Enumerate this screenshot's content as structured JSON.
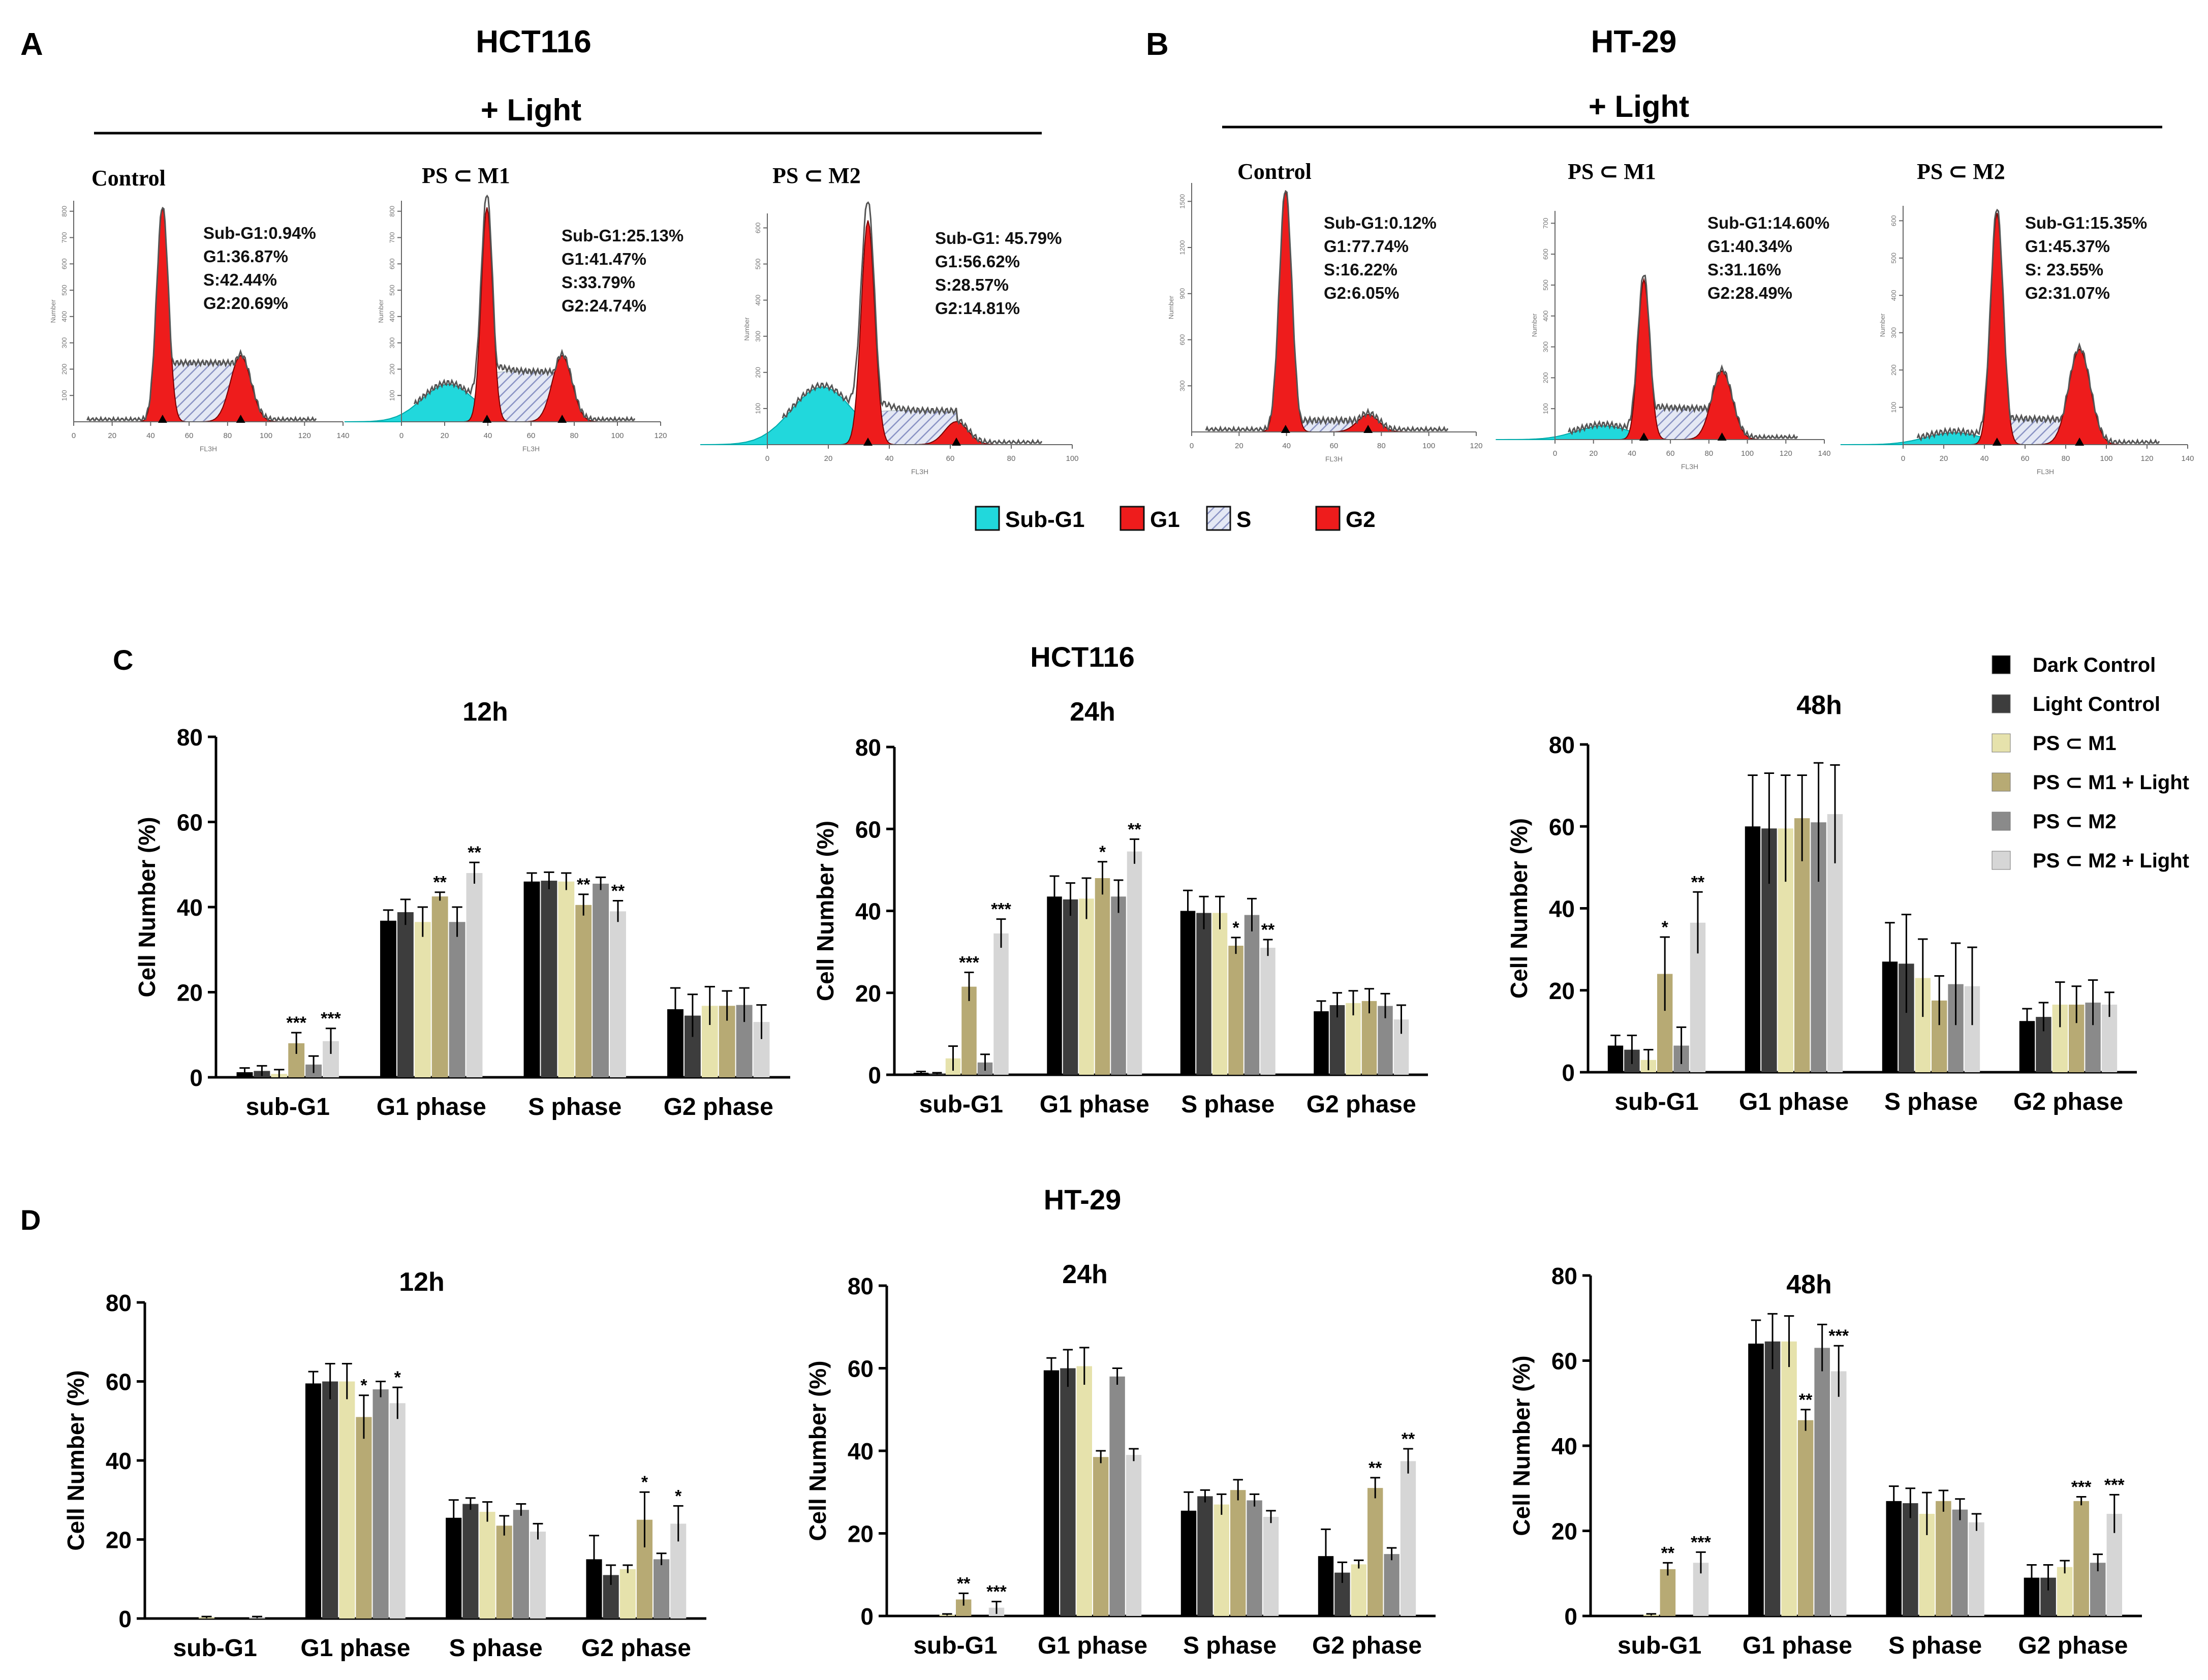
{
  "panels": {
    "a": {
      "letter": "A",
      "cell_line": "HCT116",
      "condition": "+ Light"
    },
    "b": {
      "letter": "B",
      "cell_line": "HT-29",
      "condition": "+ Light"
    },
    "c": {
      "letter": "C",
      "cell_line": "HCT116"
    },
    "d": {
      "letter": "D",
      "cell_line": "HT-29"
    }
  },
  "histograms": [
    {
      "panel": "A",
      "title": "Control",
      "stats": [
        "Sub-G1:0.94%",
        "G1:36.87%",
        "S:42.44%",
        "G2:20.69%"
      ],
      "subg1_amp": 0.0,
      "g1_amp": 0.97,
      "g2_amp": 0.3,
      "s_level": 0.26,
      "ticks": [
        "0",
        "20",
        "40",
        "60",
        "80",
        "100",
        "120",
        "140"
      ],
      "xlabel": "FL3H",
      "yticks": [
        "100",
        "200",
        "300",
        "400",
        "500",
        "600",
        "700",
        "800"
      ],
      "ylabel": "Number"
    },
    {
      "panel": "A",
      "title": "PS ⊂ M1",
      "stats": [
        "Sub-G1:25.13%",
        "G1:41.47%",
        "S:33.79%",
        "G2:24.74%"
      ],
      "subg1_amp": 0.17,
      "g1_amp": 0.97,
      "g2_amp": 0.3,
      "s_level": 0.22,
      "ticks": [
        "0",
        "20",
        "40",
        "60",
        "80",
        "100",
        "120"
      ],
      "xlabel": "FL3H",
      "yticks": [
        "100",
        "200",
        "300",
        "400",
        "500",
        "600",
        "700",
        "800"
      ],
      "ylabel": "Number"
    },
    {
      "panel": "A",
      "title": "PS ⊂ M2",
      "stats": [
        "Sub-G1: 45.79%",
        "G1:56.62%",
        "S:28.57%",
        "G2:14.81%"
      ],
      "subg1_amp": 0.25,
      "g1_amp": 0.97,
      "g2_amp": 0.1,
      "s_level": 0.14,
      "ticks": [
        "0",
        "20",
        "40",
        "60",
        "80",
        "100"
      ],
      "xlabel": "FL3H",
      "yticks": [
        "100",
        "200",
        "300",
        "400",
        "500",
        "600"
      ],
      "ylabel": "Number"
    },
    {
      "panel": "B",
      "title": "Control",
      "stats": [
        "Sub-G1:0.12%",
        "G1:77.74%",
        "S:16.22%",
        "G2:6.05%"
      ],
      "subg1_amp": 0.0,
      "g1_amp": 0.97,
      "g2_amp": 0.07,
      "s_level": 0.04,
      "ticks": [
        "0",
        "20",
        "40",
        "60",
        "80",
        "100",
        "120"
      ],
      "xlabel": "FL3H",
      "yticks": [
        "300",
        "600",
        "900",
        "1200",
        "1500"
      ],
      "ylabel": "Number"
    },
    {
      "panel": "B",
      "title": "PS ⊂ M1",
      "stats": [
        "Sub-G1:14.60%",
        "G1:40.34%",
        "S:31.16%",
        "G2:28.49%"
      ],
      "subg1_amp": 0.06,
      "g1_amp": 0.7,
      "g2_amp": 0.3,
      "s_level": 0.13,
      "ticks": [
        "0",
        "20",
        "40",
        "60",
        "80",
        "100",
        "120",
        "140"
      ],
      "xlabel": "FL3H",
      "yticks": [
        "100",
        "200",
        "300",
        "400",
        "500",
        "600",
        "700"
      ],
      "ylabel": "Number"
    },
    {
      "panel": "B",
      "title": "PS ⊂ M2",
      "stats": [
        "Sub-G1:15.35%",
        "G1:45.37%",
        "S: 23.55%",
        "G2:31.07%"
      ],
      "subg1_amp": 0.05,
      "g1_amp": 0.97,
      "g2_amp": 0.4,
      "s_level": 0.1,
      "ticks": [
        "0",
        "20",
        "40",
        "60",
        "80",
        "100",
        "120",
        "140"
      ],
      "xlabel": "FL3H",
      "yticks": [
        "100",
        "200",
        "300",
        "400",
        "500",
        "600"
      ],
      "ylabel": "Number"
    }
  ],
  "phase_legend": [
    {
      "label": "Sub-G1",
      "color": "#21d8dc"
    },
    {
      "label": "G1",
      "color": "#ee1c1c"
    },
    {
      "label": "S",
      "color": "hatch"
    },
    {
      "label": "G2",
      "color": "#ee1c1c"
    }
  ],
  "chart_legend": [
    {
      "label": "Dark Control",
      "color": "#000000"
    },
    {
      "label": "Light Control",
      "color": "#3d3d3d"
    },
    {
      "label": "PS ⊂ M1",
      "color": "#e6e2ac"
    },
    {
      "label": "PS ⊂ M1 + Light",
      "color": "#b7aa74"
    },
    {
      "label": "PS ⊂ M2",
      "color": "#8a8a8a"
    },
    {
      "label": "PS ⊂ M2 + Light",
      "color": "#d6d6d6"
    }
  ],
  "chart_data": [
    {
      "type": "bar",
      "panel": "C",
      "cell_line": "HCT116",
      "title": "12h",
      "ylabel": "Cell Number (%)",
      "ylim": [
        0,
        80
      ],
      "yticks": [
        0,
        20,
        40,
        60,
        80
      ],
      "categories": [
        "sub-G1",
        "G1 phase",
        "S phase",
        "G2 phase"
      ],
      "series": [
        {
          "name": "Dark Control",
          "values": [
            1.2,
            36.8,
            46.0,
            16.0
          ],
          "errors": [
            1.0,
            2.5,
            2.0,
            5.0
          ],
          "sig": [
            "",
            "",
            "",
            ""
          ]
        },
        {
          "name": "Light Control",
          "values": [
            1.5,
            38.8,
            46.2,
            14.5
          ],
          "errors": [
            1.2,
            3.0,
            2.0,
            5.0
          ],
          "sig": [
            "",
            "",
            "",
            ""
          ]
        },
        {
          "name": "PS ⊂ M1",
          "values": [
            0.8,
            36.5,
            46.0,
            16.8
          ],
          "errors": [
            1.0,
            3.5,
            2.0,
            4.5
          ],
          "sig": [
            "",
            "",
            "",
            ""
          ]
        },
        {
          "name": "PS ⊂ M1 + Light",
          "values": [
            8.0,
            42.5,
            40.5,
            16.8
          ],
          "errors": [
            2.5,
            1.0,
            2.5,
            3.5
          ],
          "sig": [
            "***",
            "**",
            "**",
            ""
          ]
        },
        {
          "name": "PS ⊂ M2",
          "values": [
            3.0,
            36.5,
            45.5,
            17.0
          ],
          "errors": [
            2.0,
            3.5,
            1.5,
            4.0
          ],
          "sig": [
            "",
            "",
            "",
            ""
          ]
        },
        {
          "name": "PS ⊂ M2 + Light",
          "values": [
            8.5,
            48.0,
            39.0,
            13.0
          ],
          "errors": [
            3.0,
            2.5,
            2.5,
            4.0
          ],
          "sig": [
            "***",
            "**",
            "**",
            ""
          ]
        }
      ]
    },
    {
      "type": "bar",
      "panel": "C",
      "cell_line": "HCT116",
      "title": "24h",
      "ylabel": "Cell Number (%)",
      "ylim": [
        0,
        80
      ],
      "yticks": [
        0,
        20,
        40,
        60,
        80
      ],
      "categories": [
        "sub-G1",
        "G1 phase",
        "S phase",
        "G2 phase"
      ],
      "series": [
        {
          "name": "Dark Control",
          "values": [
            0.5,
            43.5,
            40.0,
            15.5
          ],
          "errors": [
            0.3,
            5.0,
            5.0,
            2.5
          ],
          "sig": [
            "",
            "",
            "",
            ""
          ]
        },
        {
          "name": "Light Control",
          "values": [
            0.3,
            42.8,
            39.5,
            17.0
          ],
          "errors": [
            0.2,
            4.0,
            4.0,
            3.0
          ],
          "sig": [
            "",
            "",
            "",
            ""
          ]
        },
        {
          "name": "PS ⊂ M1",
          "values": [
            4.0,
            43.0,
            39.5,
            17.5
          ],
          "errors": [
            3.0,
            5.0,
            4.0,
            3.0
          ],
          "sig": [
            "",
            "",
            "",
            ""
          ]
        },
        {
          "name": "PS ⊂ M1 + Light",
          "values": [
            21.5,
            48.0,
            31.5,
            18.0
          ],
          "errors": [
            3.5,
            4.0,
            2.0,
            3.0
          ],
          "sig": [
            "***",
            "*",
            "*",
            ""
          ]
        },
        {
          "name": "PS ⊂ M2",
          "values": [
            3.0,
            43.5,
            39.0,
            16.8
          ],
          "errors": [
            2.0,
            4.0,
            4.0,
            3.0
          ],
          "sig": [
            "",
            "",
            "",
            ""
          ]
        },
        {
          "name": "PS ⊂ M2 + Light",
          "values": [
            34.5,
            54.5,
            31.0,
            13.5
          ],
          "errors": [
            3.5,
            3.0,
            2.0,
            3.5
          ],
          "sig": [
            "***",
            "**",
            "**",
            ""
          ]
        }
      ]
    },
    {
      "type": "bar",
      "panel": "C",
      "cell_line": "HCT116",
      "title": "48h",
      "ylabel": "Cell Number (%)",
      "ylim": [
        0,
        80
      ],
      "yticks": [
        0,
        20,
        40,
        60,
        80
      ],
      "categories": [
        "sub-G1",
        "G1 phase",
        "S phase",
        "G2 phase"
      ],
      "series": [
        {
          "name": "Dark Control",
          "values": [
            6.5,
            60.0,
            27.0,
            12.5
          ],
          "errors": [
            2.5,
            12.5,
            9.5,
            3.0
          ],
          "sig": [
            "",
            "",
            "",
            ""
          ]
        },
        {
          "name": "Light Control",
          "values": [
            5.5,
            59.5,
            26.5,
            13.5
          ],
          "errors": [
            3.5,
            13.5,
            12.0,
            3.5
          ],
          "sig": [
            "",
            "",
            "",
            ""
          ]
        },
        {
          "name": "PS ⊂ M1",
          "values": [
            3.0,
            59.5,
            23.0,
            16.5
          ],
          "errors": [
            2.5,
            13.0,
            9.5,
            5.5
          ],
          "sig": [
            "",
            "",
            "",
            ""
          ]
        },
        {
          "name": "PS ⊂ M1 + Light",
          "values": [
            24.0,
            62.0,
            17.5,
            16.5
          ],
          "errors": [
            9.0,
            10.5,
            6.0,
            4.5
          ],
          "sig": [
            "*",
            "",
            "",
            ""
          ]
        },
        {
          "name": "PS ⊂ M2",
          "values": [
            6.5,
            61.0,
            21.5,
            17.0
          ],
          "errors": [
            4.5,
            14.5,
            10.0,
            5.5
          ],
          "sig": [
            "",
            "",
            "",
            ""
          ]
        },
        {
          "name": "PS ⊂ M2 + Light",
          "values": [
            36.5,
            63.0,
            21.0,
            16.5
          ],
          "errors": [
            7.5,
            12.0,
            9.5,
            3.0
          ],
          "sig": [
            "**",
            "",
            "",
            ""
          ]
        }
      ]
    },
    {
      "type": "bar",
      "panel": "D",
      "cell_line": "HT-29",
      "title": "12h",
      "ylabel": "Cell Number (%)",
      "ylim": [
        0,
        80
      ],
      "yticks": [
        0,
        20,
        40,
        60,
        80
      ],
      "categories": [
        "sub-G1",
        "G1 phase",
        "S phase",
        "G2 phase"
      ],
      "series": [
        {
          "name": "Dark Control",
          "values": [
            0.0,
            59.5,
            25.5,
            15.0
          ],
          "errors": [
            0.0,
            3.0,
            4.5,
            6.0
          ],
          "sig": [
            "",
            "",
            "",
            ""
          ]
        },
        {
          "name": "Light Control",
          "values": [
            0.0,
            60.0,
            29.0,
            11.0
          ],
          "errors": [
            0.0,
            4.5,
            1.5,
            2.5
          ],
          "sig": [
            "",
            "",
            "",
            ""
          ]
        },
        {
          "name": "PS ⊂ M1",
          "values": [
            0.3,
            60.0,
            27.0,
            12.5
          ],
          "errors": [
            0.2,
            4.5,
            2.5,
            1.0
          ],
          "sig": [
            "",
            "",
            "",
            ""
          ]
        },
        {
          "name": "PS ⊂ M1 + Light",
          "values": [
            0.0,
            51.0,
            23.5,
            25.0
          ],
          "errors": [
            0.0,
            5.5,
            2.5,
            7.0
          ],
          "sig": [
            "",
            "*",
            "",
            "*"
          ]
        },
        {
          "name": "PS ⊂ M2",
          "values": [
            0.0,
            58.0,
            27.5,
            15.0
          ],
          "errors": [
            0.0,
            2.0,
            1.5,
            1.5
          ],
          "sig": [
            "",
            "",
            "",
            ""
          ]
        },
        {
          "name": "PS ⊂ M2 + Light",
          "values": [
            0.3,
            54.5,
            22.0,
            24.0
          ],
          "errors": [
            0.2,
            4.0,
            2.0,
            4.5
          ],
          "sig": [
            "",
            "*",
            "",
            "*"
          ]
        }
      ]
    },
    {
      "type": "bar",
      "panel": "D",
      "cell_line": "HT-29",
      "title": "24h",
      "ylabel": "Cell Number (%)",
      "ylim": [
        0,
        80
      ],
      "yticks": [
        0,
        20,
        40,
        60,
        80
      ],
      "categories": [
        "sub-G1",
        "G1 phase",
        "S phase",
        "G2 phase"
      ],
      "series": [
        {
          "name": "Dark Control",
          "values": [
            0.0,
            59.5,
            25.5,
            14.5
          ],
          "errors": [
            0.0,
            3.0,
            4.5,
            6.5
          ],
          "sig": [
            "",
            "",
            "",
            ""
          ]
        },
        {
          "name": "Light Control",
          "values": [
            0.0,
            60.0,
            29.0,
            10.5
          ],
          "errors": [
            0.0,
            4.5,
            1.5,
            2.5
          ],
          "sig": [
            "",
            "",
            "",
            ""
          ]
        },
        {
          "name": "PS ⊂ M1",
          "values": [
            0.3,
            60.5,
            27.0,
            12.5
          ],
          "errors": [
            0.2,
            4.5,
            2.5,
            1.0
          ],
          "sig": [
            "",
            "",
            "",
            ""
          ]
        },
        {
          "name": "PS ⊂ M1 + Light",
          "values": [
            4.0,
            38.5,
            30.5,
            31.0
          ],
          "errors": [
            1.5,
            1.5,
            2.5,
            2.5
          ],
          "sig": [
            "**",
            "",
            "",
            "**"
          ]
        },
        {
          "name": "PS ⊂ M2",
          "values": [
            0.0,
            58.0,
            28.0,
            15.0
          ],
          "errors": [
            0.0,
            2.0,
            1.5,
            1.5
          ],
          "sig": [
            "",
            "",
            "",
            ""
          ]
        },
        {
          "name": "PS ⊂ M2 + Light",
          "values": [
            2.0,
            39.0,
            24.0,
            37.5
          ],
          "errors": [
            1.5,
            1.5,
            1.5,
            3.0
          ],
          "sig": [
            "***",
            "",
            "",
            "**"
          ]
        }
      ]
    },
    {
      "type": "bar",
      "panel": "D",
      "cell_line": "HT-29",
      "title": "48h",
      "ylabel": "Cell Number (%)",
      "ylim": [
        0,
        80
      ],
      "yticks": [
        0,
        20,
        40,
        60,
        80
      ],
      "categories": [
        "sub-G1",
        "G1 phase",
        "S phase",
        "G2 phase"
      ],
      "series": [
        {
          "name": "Dark Control",
          "values": [
            0.0,
            64.0,
            27.0,
            9.0
          ],
          "errors": [
            0.0,
            5.5,
            3.5,
            3.0
          ],
          "sig": [
            "",
            "",
            "",
            ""
          ]
        },
        {
          "name": "Light Control",
          "values": [
            0.0,
            64.5,
            26.5,
            9.0
          ],
          "errors": [
            0.0,
            6.5,
            3.5,
            3.0
          ],
          "sig": [
            "",
            "",
            "",
            ""
          ]
        },
        {
          "name": "PS ⊂ M1",
          "values": [
            0.3,
            64.5,
            24.0,
            11.5
          ],
          "errors": [
            0.2,
            6.0,
            5.0,
            1.5
          ],
          "sig": [
            "",
            "",
            "",
            ""
          ]
        },
        {
          "name": "PS ⊂ M1 + Light",
          "values": [
            11.0,
            46.0,
            27.0,
            27.0
          ],
          "errors": [
            1.5,
            2.5,
            2.5,
            1.0
          ],
          "sig": [
            "**",
            "**",
            "",
            "***"
          ]
        },
        {
          "name": "PS ⊂ M2",
          "values": [
            0.0,
            63.0,
            25.0,
            12.5
          ],
          "errors": [
            0.0,
            5.5,
            2.5,
            2.0
          ],
          "sig": [
            "",
            "",
            "",
            ""
          ]
        },
        {
          "name": "PS ⊂ M2 + Light",
          "values": [
            12.5,
            57.5,
            22.0,
            24.0
          ],
          "errors": [
            2.5,
            6.0,
            2.0,
            4.5
          ],
          "sig": [
            "***",
            "***",
            "",
            "***"
          ]
        }
      ]
    }
  ]
}
